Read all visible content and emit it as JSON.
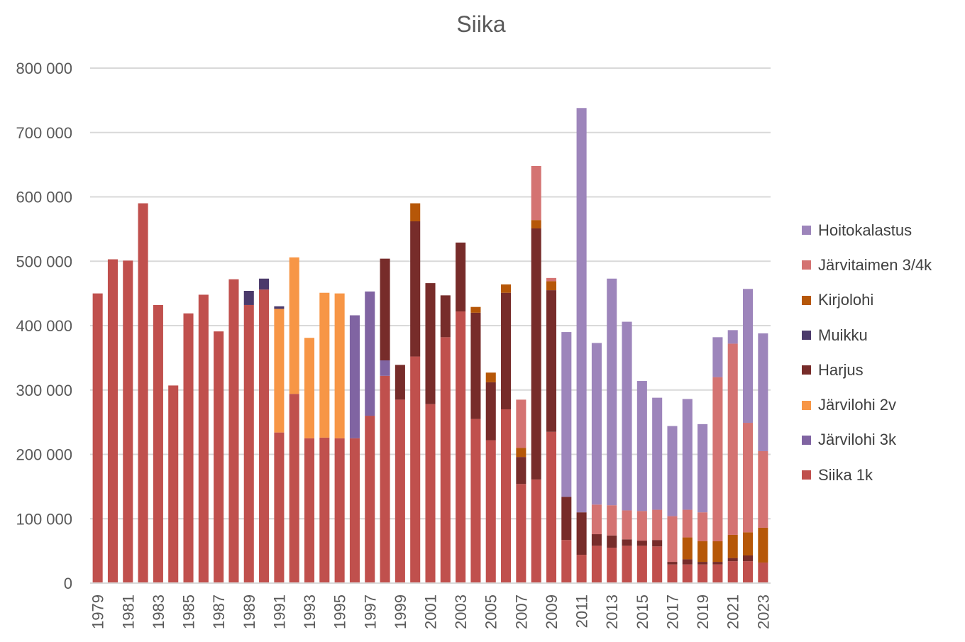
{
  "chart_data": {
    "type": "bar",
    "stacked": true,
    "title": "Siika",
    "xlabel": "",
    "ylabel": "",
    "ylim": [
      0,
      800000
    ],
    "yticks": [
      "0",
      "100 000",
      "200 000",
      "300 000",
      "400 000",
      "500 000",
      "600 000",
      "700 000",
      "800 000"
    ],
    "grid": true,
    "legend_position": "right",
    "x_tick_labels": [
      "1979",
      "1981",
      "1983",
      "1985",
      "1987",
      "1989",
      "1991",
      "1993",
      "1995",
      "1997",
      "1999",
      "2001",
      "2003",
      "2005",
      "2007",
      "2009",
      "2011",
      "2013",
      "2015",
      "2017",
      "2019",
      "2021",
      "2023"
    ],
    "categories": [
      "1979",
      "1980",
      "1981",
      "1982",
      "1983",
      "1984",
      "1985",
      "1986",
      "1987",
      "1988",
      "1989",
      "1990",
      "1991",
      "1992",
      "1993",
      "1994",
      "1995",
      "1996",
      "1997",
      "1998",
      "1999",
      "2000",
      "2001",
      "2002",
      "2003",
      "2004",
      "2005",
      "2006",
      "2007",
      "2008",
      "2009",
      "2010",
      "2011",
      "2012",
      "2013",
      "2014",
      "2015",
      "2016",
      "2017",
      "2018",
      "2019",
      "2020",
      "2021",
      "2022",
      "2023"
    ],
    "series": [
      {
        "name": "Siika 1k",
        "color": "#C0504D",
        "values": [
          450000,
          503000,
          501000,
          590000,
          432000,
          307000,
          419000,
          448000,
          391000,
          472000,
          432000,
          456000,
          234000,
          294000,
          225000,
          226000,
          225000,
          225000,
          260000,
          322000,
          285000,
          352000,
          278000,
          382000,
          422000,
          255000,
          222000,
          270000,
          154000,
          161000,
          235000,
          67000,
          44000,
          58000,
          55000,
          58000,
          58000,
          57000,
          29000,
          29000,
          29000,
          29000,
          34000,
          34000,
          32000
        ]
      },
      {
        "name": "Järvilohi 3k",
        "color": "#8064A2",
        "values": [
          0,
          0,
          0,
          0,
          0,
          0,
          0,
          0,
          0,
          0,
          0,
          0,
          0,
          0,
          0,
          0,
          0,
          191000,
          193000,
          24000,
          0,
          0,
          0,
          0,
          0,
          0,
          0,
          0,
          0,
          0,
          0,
          0,
          0,
          0,
          0,
          0,
          0,
          0,
          0,
          0,
          0,
          0,
          0,
          0,
          0
        ]
      },
      {
        "name": "Järvilohi 2v",
        "color": "#F79646",
        "values": [
          0,
          0,
          0,
          0,
          0,
          0,
          0,
          0,
          0,
          0,
          0,
          0,
          192000,
          212000,
          156000,
          225000,
          225000,
          0,
          0,
          0,
          0,
          0,
          0,
          0,
          0,
          0,
          0,
          0,
          0,
          0,
          0,
          0,
          0,
          0,
          0,
          0,
          0,
          0,
          0,
          0,
          0,
          0,
          0,
          0,
          0
        ]
      },
      {
        "name": "Harjus",
        "color": "#772C2A",
        "values": [
          0,
          0,
          0,
          0,
          0,
          0,
          0,
          0,
          0,
          0,
          0,
          0,
          0,
          0,
          0,
          0,
          0,
          0,
          0,
          158000,
          54000,
          210000,
          188000,
          65000,
          107000,
          165000,
          90000,
          181000,
          42000,
          390000,
          220000,
          67000,
          66000,
          18000,
          19000,
          10000,
          8000,
          10000,
          4000,
          8000,
          4000,
          4000,
          5000,
          9000,
          0
        ]
      },
      {
        "name": "Muikku",
        "color": "#4B3A6B",
        "values": [
          0,
          0,
          0,
          0,
          0,
          0,
          0,
          0,
          0,
          0,
          22000,
          17000,
          4000,
          0,
          0,
          0,
          0,
          0,
          0,
          0,
          0,
          0,
          0,
          0,
          0,
          0,
          0,
          0,
          0,
          0,
          0,
          0,
          0,
          0,
          0,
          0,
          0,
          0,
          0,
          0,
          0,
          0,
          0,
          0,
          0
        ]
      },
      {
        "name": "Kirjolohi",
        "color": "#B65708",
        "values": [
          0,
          0,
          0,
          0,
          0,
          0,
          0,
          0,
          0,
          0,
          0,
          0,
          0,
          0,
          0,
          0,
          0,
          0,
          0,
          0,
          0,
          28000,
          0,
          0,
          0,
          9000,
          15000,
          13000,
          14000,
          13000,
          14000,
          0,
          0,
          0,
          0,
          0,
          0,
          0,
          0,
          34000,
          32000,
          32000,
          36000,
          36000,
          54000
        ]
      },
      {
        "name": "Järvitaimen 3/4k",
        "color": "#D47372",
        "values": [
          0,
          0,
          0,
          0,
          0,
          0,
          0,
          0,
          0,
          0,
          0,
          0,
          0,
          0,
          0,
          0,
          0,
          0,
          0,
          0,
          0,
          0,
          0,
          0,
          0,
          0,
          0,
          0,
          75000,
          84000,
          5000,
          0,
          0,
          46000,
          47000,
          45000,
          46000,
          47000,
          71000,
          43000,
          45000,
          255000,
          297000,
          170000,
          119000
        ]
      },
      {
        "name": "Hoitokalastus",
        "color": "#9D85BB",
        "values": [
          0,
          0,
          0,
          0,
          0,
          0,
          0,
          0,
          0,
          0,
          0,
          0,
          0,
          0,
          0,
          0,
          0,
          0,
          0,
          0,
          0,
          0,
          0,
          0,
          0,
          0,
          0,
          0,
          0,
          0,
          0,
          256000,
          628000,
          251000,
          352000,
          293000,
          202000,
          174000,
          140000,
          172000,
          137000,
          62000,
          21000,
          208000,
          183000
        ]
      }
    ]
  }
}
